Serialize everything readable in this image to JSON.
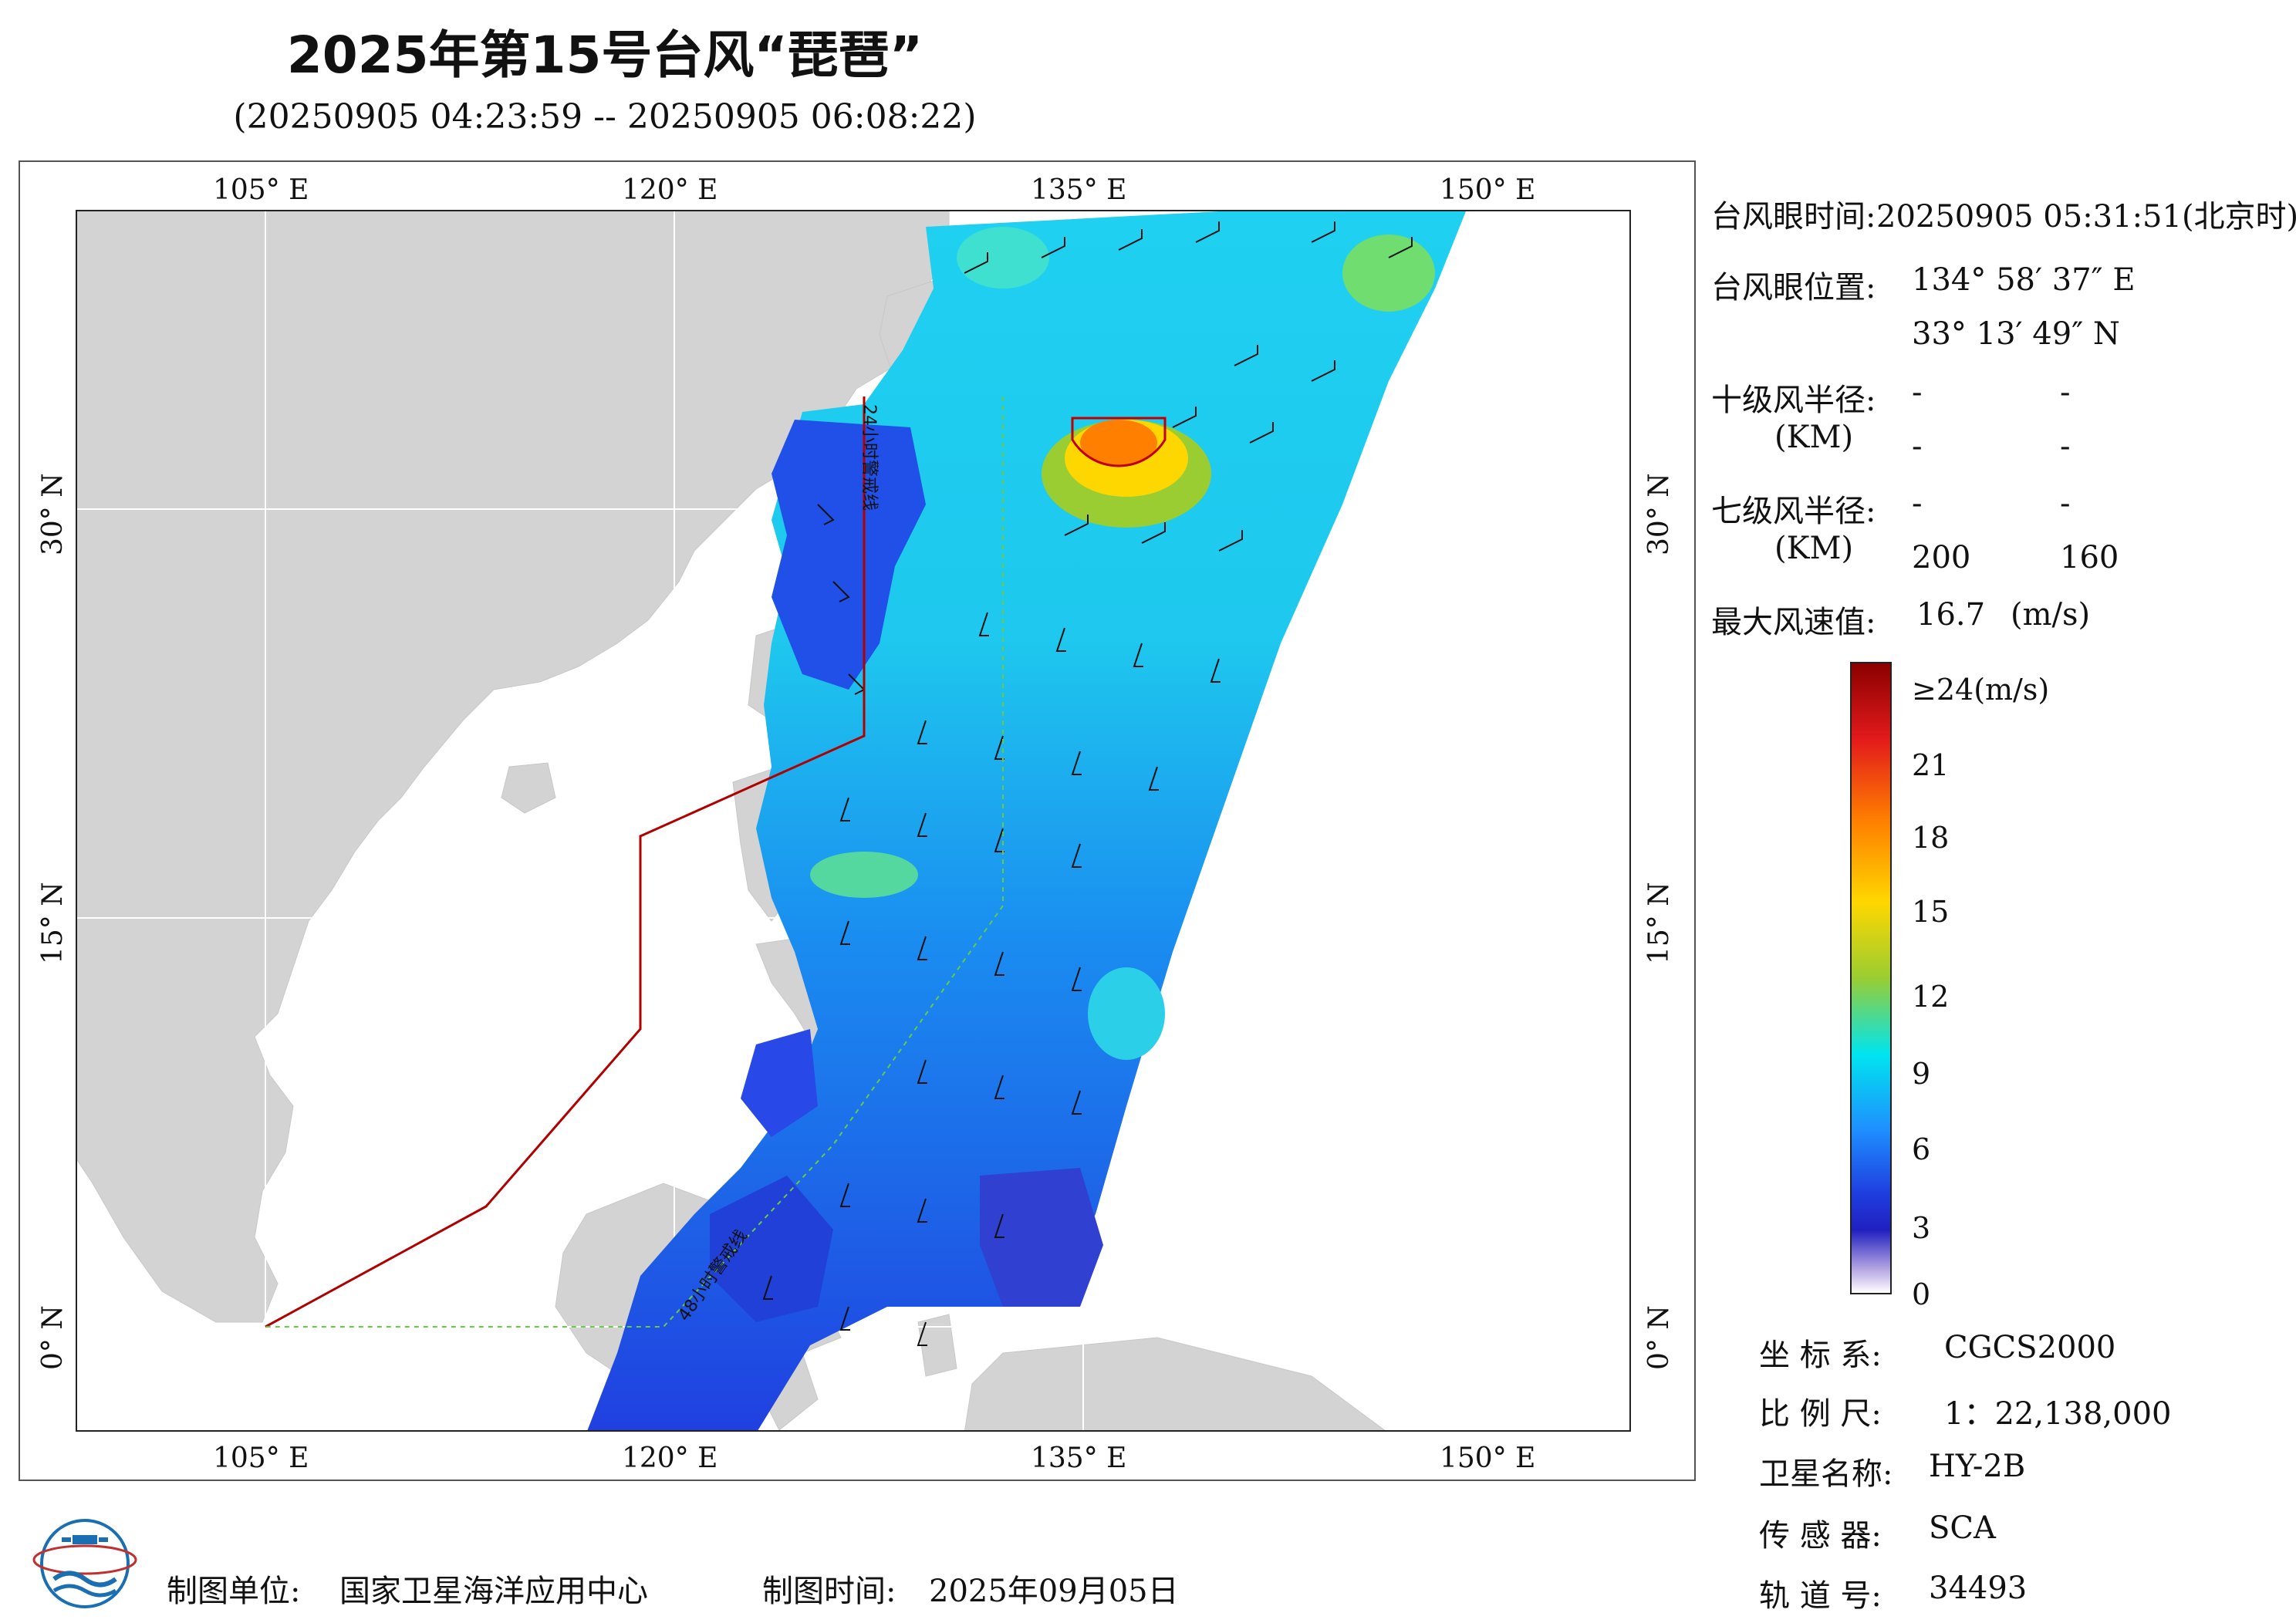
{
  "title": "2025年第15号台风“琵琶”",
  "subtitle": "(20250905 04:23:59 -- 20250905 06:08:22)",
  "axes": {
    "lon_labels": [
      "105° E",
      "120° E",
      "135° E",
      "150° E"
    ],
    "lat_labels": [
      "30° N",
      "15° N",
      "0° N"
    ]
  },
  "map_annotations": {
    "line_24h": "24小时警戒线",
    "line_48h": "48小时警戒线"
  },
  "info": {
    "eye_time_label": "台风眼时间:",
    "eye_time_value": "20250905 05:31:51(北京时)",
    "eye_pos_label": "台风眼位置:",
    "eye_lon": "134° 58′ 37″ E",
    "eye_lat": "33° 13′ 49″ N",
    "r10_label": "十级风半径:",
    "r10_unit": "(KM)",
    "r10_values": [
      "-",
      "-",
      "-",
      "-"
    ],
    "r7_label": "七级风半径:",
    "r7_unit": "(KM)",
    "r7_values": [
      "-",
      "-",
      "200",
      "160"
    ],
    "max_wind_label": "最大风速值:",
    "max_wind_value": "16.7",
    "max_wind_unit": "(m/s)"
  },
  "colorbar": {
    "top_label": "≥24(m/s)",
    "labels": [
      "21",
      "18",
      "15",
      "12",
      "9",
      "6",
      "3",
      "0"
    ],
    "colors": [
      "#8b0000",
      "#e31a1c",
      "#ff7f00",
      "#ffd700",
      "#9acd32",
      "#00e5ee",
      "#1e90ff",
      "#1f3fe0",
      "#2020c0",
      "#b0a0e0",
      "#ffffff"
    ]
  },
  "metadata": {
    "crs_label": "坐 标 系:",
    "crs_value": "CGCS2000",
    "scale_label": "比 例 尺:",
    "scale_value": "1：22,138,000",
    "sat_label": "卫星名称:",
    "sat_value": "HY-2B",
    "sensor_label": "传 感 器:",
    "sensor_value": "SCA",
    "orbit_label": "轨 道 号:",
    "orbit_value": "34493"
  },
  "footer": {
    "org_label": "制图单位:",
    "org_value": "国家卫星海洋应用中心",
    "date_label": "制图时间:",
    "date_value": "2025年09月05日"
  }
}
